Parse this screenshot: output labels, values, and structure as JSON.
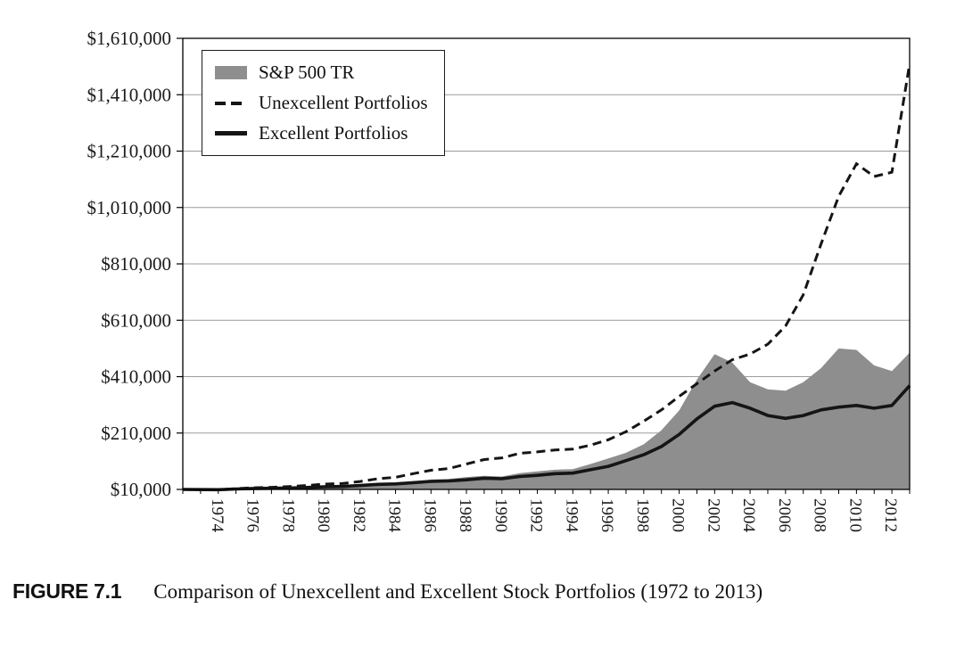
{
  "figure": {
    "label": "FIGURE 7.1",
    "caption": "Comparison of Unexcellent and Excellent Stock Portfolios (1972 to 2013)"
  },
  "chart_data": {
    "type": "area",
    "title": "",
    "xlabel": "",
    "ylabel": "",
    "grid": "horizontal",
    "legend_position": "top-left",
    "ylim": [
      10000,
      1610000
    ],
    "ytick_step": 200000,
    "ytick_labels": [
      "$10,000",
      "$210,000",
      "$410,000",
      "$610,000",
      "$810,000",
      "$1,010,000",
      "$1,210,000",
      "$1,410,000",
      "$1,610,000"
    ],
    "x": [
      1972,
      1973,
      1974,
      1975,
      1976,
      1977,
      1978,
      1979,
      1980,
      1981,
      1982,
      1983,
      1984,
      1985,
      1986,
      1987,
      1988,
      1989,
      1990,
      1991,
      1992,
      1993,
      1994,
      1995,
      1996,
      1997,
      1998,
      1999,
      2000,
      2001,
      2002,
      2003,
      2004,
      2005,
      2006,
      2007,
      2008,
      2009,
      2010,
      2011,
      2012,
      2013
    ],
    "x_tick_labels": [
      "1974",
      "1976",
      "1978",
      "1980",
      "1982",
      "1984",
      "1986",
      "1988",
      "1990",
      "1992",
      "1994",
      "1996",
      "1998",
      "2000",
      "2002",
      "2004",
      "2006",
      "2008",
      "2010",
      "2012"
    ],
    "series": [
      {
        "name": "S&P 500 TR",
        "style": "area",
        "color": "#8e8e8e",
        "values": [
          10000,
          9000,
          8000,
          11000,
          13000,
          12500,
          13500,
          16000,
          20000,
          19000,
          23000,
          28000,
          30000,
          38000,
          45000,
          47000,
          54000,
          58000,
          56000,
          68000,
          74000,
          80000,
          82000,
          100000,
          120000,
          140000,
          170000,
          220000,
          290000,
          400000,
          490000,
          460000,
          390000,
          365000,
          360000,
          390000,
          440000,
          510000,
          505000,
          450000,
          430000,
          495000
        ]
      },
      {
        "name": "Unexcellent Portfolios",
        "style": "dashed-line",
        "color": "#151515",
        "values": [
          10000,
          9500,
          9000,
          13000,
          16000,
          17500,
          20000,
          24000,
          29000,
          31000,
          38000,
          48000,
          53000,
          66000,
          78000,
          84000,
          100000,
          116000,
          122000,
          138000,
          143000,
          150000,
          153000,
          167000,
          186000,
          215000,
          252000,
          292000,
          340000,
          385000,
          430000,
          470000,
          490000,
          525000,
          590000,
          700000,
          880000,
          1050000,
          1165000,
          1120000,
          1135000,
          1520000
        ]
      },
      {
        "name": "Excellent Portfolios",
        "style": "solid-line",
        "color": "#151515",
        "values": [
          10000,
          9500,
          9000,
          11500,
          13500,
          14000,
          15000,
          17000,
          19500,
          20500,
          24000,
          28000,
          29500,
          34000,
          38500,
          40000,
          44000,
          50000,
          48000,
          56000,
          60000,
          66000,
          68000,
          80000,
          92000,
          112000,
          133000,
          162000,
          205000,
          260000,
          305000,
          318000,
          298000,
          272000,
          262000,
          272000,
          292000,
          302000,
          308000,
          298000,
          308000,
          378000
        ]
      }
    ]
  }
}
